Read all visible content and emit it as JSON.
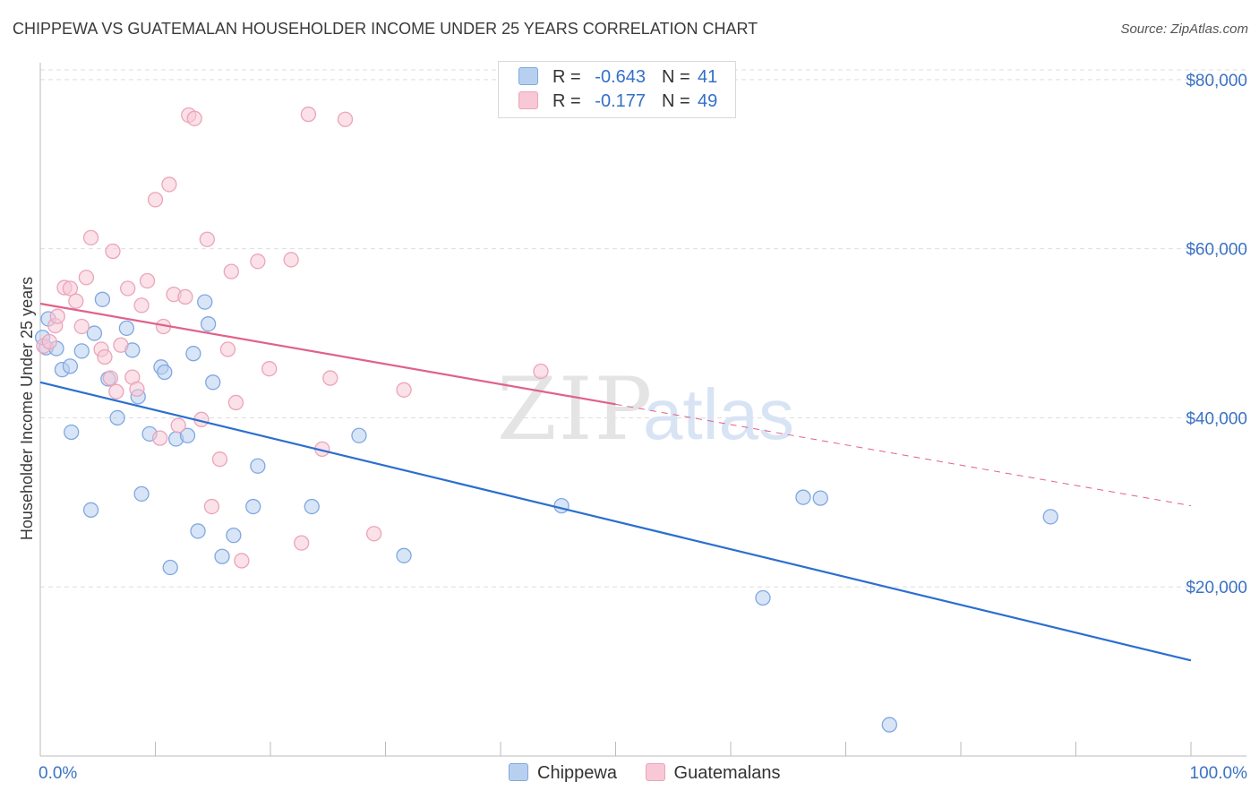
{
  "title": "CHIPPEWA VS GUATEMALAN HOUSEHOLDER INCOME UNDER 25 YEARS CORRELATION CHART",
  "source": "Source: ZipAtlas.com",
  "watermark": {
    "zip": "ZIP",
    "atlas": "atlas"
  },
  "colors": {
    "chippewa_fill": "#b8d0f0",
    "chippewa_stroke": "#7fa8e0",
    "chippewa_line": "#2b6fd0",
    "guatemalan_fill": "#f8c8d6",
    "guatemalan_stroke": "#eba4bb",
    "guatemalan_line": "#e0628a",
    "tick_label": "#3a72c4",
    "grid": "#dddddd"
  },
  "legend": {
    "r_label": "R =",
    "n_label": "N =",
    "rows": [
      {
        "r": "-0.643",
        "n": "41"
      },
      {
        "r": "-0.177",
        "n": "49"
      }
    ]
  },
  "chart_data": {
    "type": "scatter",
    "title": "CHIPPEWA VS GUATEMALAN HOUSEHOLDER INCOME UNDER 25 YEARS CORRELATION CHART",
    "xlabel": "",
    "ylabel": "Householder Income Under 25 years",
    "xlim": [
      0,
      100
    ],
    "ylim": [
      0,
      82000
    ],
    "x_tick_labels": [
      "0.0%",
      "100.0%"
    ],
    "y_ticks": [
      20000,
      40000,
      60000,
      80000
    ],
    "y_tick_labels": [
      "$20,000",
      "$40,000",
      "$60,000",
      "$80,000"
    ],
    "grid": true,
    "legend_position": "top-center",
    "series": [
      {
        "name": "Chippewa",
        "points": [
          [
            0.5,
            48300
          ],
          [
            0.7,
            51700
          ],
          [
            1.4,
            48200
          ],
          [
            1.9,
            45700
          ],
          [
            2.6,
            46100
          ],
          [
            2.7,
            38300
          ],
          [
            3.6,
            47900
          ],
          [
            4.4,
            29100
          ],
          [
            4.7,
            50000
          ],
          [
            5.4,
            54000
          ],
          [
            5.9,
            44600
          ],
          [
            6.7,
            40000
          ],
          [
            7.5,
            50600
          ],
          [
            8.0,
            48000
          ],
          [
            8.5,
            42500
          ],
          [
            8.8,
            31000
          ],
          [
            9.5,
            38100
          ],
          [
            10.5,
            46000
          ],
          [
            10.8,
            45400
          ],
          [
            11.3,
            22300
          ],
          [
            11.8,
            37500
          ],
          [
            12.8,
            37900
          ],
          [
            13.3,
            47600
          ],
          [
            13.7,
            26600
          ],
          [
            14.3,
            53700
          ],
          [
            14.6,
            51100
          ],
          [
            15.0,
            44200
          ],
          [
            15.8,
            23600
          ],
          [
            16.8,
            26100
          ],
          [
            18.5,
            29500
          ],
          [
            18.9,
            34300
          ],
          [
            23.6,
            29500
          ],
          [
            27.7,
            37900
          ],
          [
            31.6,
            23700
          ],
          [
            45.3,
            29600
          ],
          [
            62.8,
            18700
          ],
          [
            66.3,
            30600
          ],
          [
            67.8,
            30500
          ],
          [
            73.8,
            3700
          ],
          [
            87.8,
            28300
          ],
          [
            0.2,
            49500
          ]
        ]
      },
      {
        "name": "Guatemalans",
        "points": [
          [
            0.3,
            48500
          ],
          [
            0.8,
            49000
          ],
          [
            1.3,
            50900
          ],
          [
            1.5,
            52000
          ],
          [
            2.1,
            55400
          ],
          [
            2.6,
            55300
          ],
          [
            3.1,
            53800
          ],
          [
            3.6,
            50800
          ],
          [
            4.0,
            56600
          ],
          [
            4.4,
            61300
          ],
          [
            5.3,
            48100
          ],
          [
            5.6,
            47200
          ],
          [
            6.1,
            44700
          ],
          [
            6.3,
            59700
          ],
          [
            6.6,
            43100
          ],
          [
            7.0,
            48600
          ],
          [
            7.6,
            55300
          ],
          [
            8.0,
            44800
          ],
          [
            8.4,
            43400
          ],
          [
            8.8,
            53300
          ],
          [
            9.3,
            56200
          ],
          [
            10.0,
            65800
          ],
          [
            10.4,
            37600
          ],
          [
            10.7,
            50800
          ],
          [
            11.2,
            67600
          ],
          [
            11.6,
            54600
          ],
          [
            12.0,
            39100
          ],
          [
            12.6,
            54300
          ],
          [
            12.9,
            75800
          ],
          [
            13.4,
            75400
          ],
          [
            14.0,
            39800
          ],
          [
            14.5,
            61100
          ],
          [
            14.9,
            29500
          ],
          [
            15.6,
            35100
          ],
          [
            16.3,
            48100
          ],
          [
            16.6,
            57300
          ],
          [
            17.0,
            41800
          ],
          [
            17.5,
            23100
          ],
          [
            18.9,
            58500
          ],
          [
            19.9,
            45800
          ],
          [
            21.8,
            58700
          ],
          [
            22.7,
            25200
          ],
          [
            23.3,
            75900
          ],
          [
            24.5,
            36300
          ],
          [
            25.2,
            44700
          ],
          [
            26.5,
            75300
          ],
          [
            29.0,
            26300
          ],
          [
            31.6,
            43300
          ],
          [
            43.5,
            45500
          ]
        ]
      }
    ],
    "trendlines": [
      {
        "series": "Chippewa",
        "x": [
          0,
          100
        ],
        "y": [
          44200,
          11300
        ],
        "style": "solid"
      },
      {
        "series": "Guatemalans",
        "x": [
          0,
          50
        ],
        "y": [
          53500,
          41600
        ],
        "style": "solid"
      },
      {
        "series": "Guatemalans",
        "x": [
          50,
          100
        ],
        "y": [
          41600,
          29600
        ],
        "style": "dashed"
      }
    ]
  },
  "bottom_legend": [
    {
      "label": "Chippewa"
    },
    {
      "label": "Guatemalans"
    }
  ]
}
